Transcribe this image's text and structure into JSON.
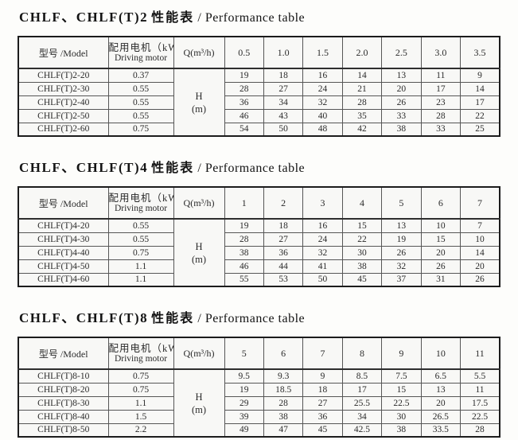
{
  "tables": [
    {
      "title_model": "CHLF、CHLF(T)2",
      "title_cn": "性能表",
      "title_en": "/ Performance table",
      "headers": {
        "model": "型号 /Model",
        "motor_cn": "配用电机（kW）",
        "motor_en": "Driving motor",
        "q": "Q(m³/h)"
      },
      "q_values": [
        "0.5",
        "1.0",
        "1.5",
        "2.0",
        "2.5",
        "3.0",
        "3.5"
      ],
      "h_symbol": "H",
      "h_unit": "(m)",
      "rows": [
        {
          "model": "CHLF(T)2-20",
          "motor": "0.37",
          "values": [
            "19",
            "18",
            "16",
            "14",
            "13",
            "11",
            "9"
          ]
        },
        {
          "model": "CHLF(T)2-30",
          "motor": "0.55",
          "values": [
            "28",
            "27",
            "24",
            "21",
            "20",
            "17",
            "14"
          ]
        },
        {
          "model": "CHLF(T)2-40",
          "motor": "0.55",
          "values": [
            "36",
            "34",
            "32",
            "28",
            "26",
            "23",
            "17"
          ]
        },
        {
          "model": "CHLF(T)2-50",
          "motor": "0.55",
          "values": [
            "46",
            "43",
            "40",
            "35",
            "33",
            "28",
            "22"
          ]
        },
        {
          "model": "CHLF(T)2-60",
          "motor": "0.75",
          "values": [
            "54",
            "50",
            "48",
            "42",
            "38",
            "33",
            "25"
          ]
        }
      ]
    },
    {
      "title_model": "CHLF、CHLF(T)4",
      "title_cn": "性能表",
      "title_en": "/ Performance table",
      "headers": {
        "model": "型号 /Model",
        "motor_cn": "配用电机（kW）",
        "motor_en": "Driving motor",
        "q": "Q(m³/h)"
      },
      "q_values": [
        "1",
        "2",
        "3",
        "4",
        "5",
        "6",
        "7"
      ],
      "h_symbol": "H",
      "h_unit": "(m)",
      "rows": [
        {
          "model": "CHLF(T)4-20",
          "motor": "0.55",
          "values": [
            "19",
            "18",
            "16",
            "15",
            "13",
            "10",
            "7"
          ]
        },
        {
          "model": "CHLF(T)4-30",
          "motor": "0.55",
          "values": [
            "28",
            "27",
            "24",
            "22",
            "19",
            "15",
            "10"
          ]
        },
        {
          "model": "CHLF(T)4-40",
          "motor": "0.75",
          "values": [
            "38",
            "36",
            "32",
            "30",
            "26",
            "20",
            "14"
          ]
        },
        {
          "model": "CHLF(T)4-50",
          "motor": "1.1",
          "values": [
            "46",
            "44",
            "41",
            "38",
            "32",
            "26",
            "20"
          ]
        },
        {
          "model": "CHLF(T)4-60",
          "motor": "1.1",
          "values": [
            "55",
            "53",
            "50",
            "45",
            "37",
            "31",
            "26"
          ]
        }
      ]
    },
    {
      "title_model": "CHLF、CHLF(T)8",
      "title_cn": "性能表",
      "title_en": "/ Performance table",
      "headers": {
        "model": "型号 /Model",
        "motor_cn": "配用电机（kW）",
        "motor_en": "Driving motor",
        "q": "Q(m³/h)"
      },
      "q_values": [
        "5",
        "6",
        "7",
        "8",
        "9",
        "10",
        "11"
      ],
      "h_symbol": "H",
      "h_unit": "(m)",
      "rows": [
        {
          "model": "CHLF(T)8-10",
          "motor": "0.75",
          "values": [
            "9.5",
            "9.3",
            "9",
            "8.5",
            "7.5",
            "6.5",
            "5.5"
          ]
        },
        {
          "model": "CHLF(T)8-20",
          "motor": "0.75",
          "values": [
            "19",
            "18.5",
            "18",
            "17",
            "15",
            "13",
            "11"
          ]
        },
        {
          "model": "CHLF(T)8-30",
          "motor": "1.1",
          "values": [
            "29",
            "28",
            "27",
            "25.5",
            "22.5",
            "20",
            "17.5"
          ]
        },
        {
          "model": "CHLF(T)8-40",
          "motor": "1.5",
          "values": [
            "39",
            "38",
            "36",
            "34",
            "30",
            "26.5",
            "22.5"
          ]
        },
        {
          "model": "CHLF(T)8-50",
          "motor": "2.2",
          "values": [
            "49",
            "47",
            "45",
            "42.5",
            "38",
            "33.5",
            "28"
          ]
        }
      ]
    }
  ]
}
